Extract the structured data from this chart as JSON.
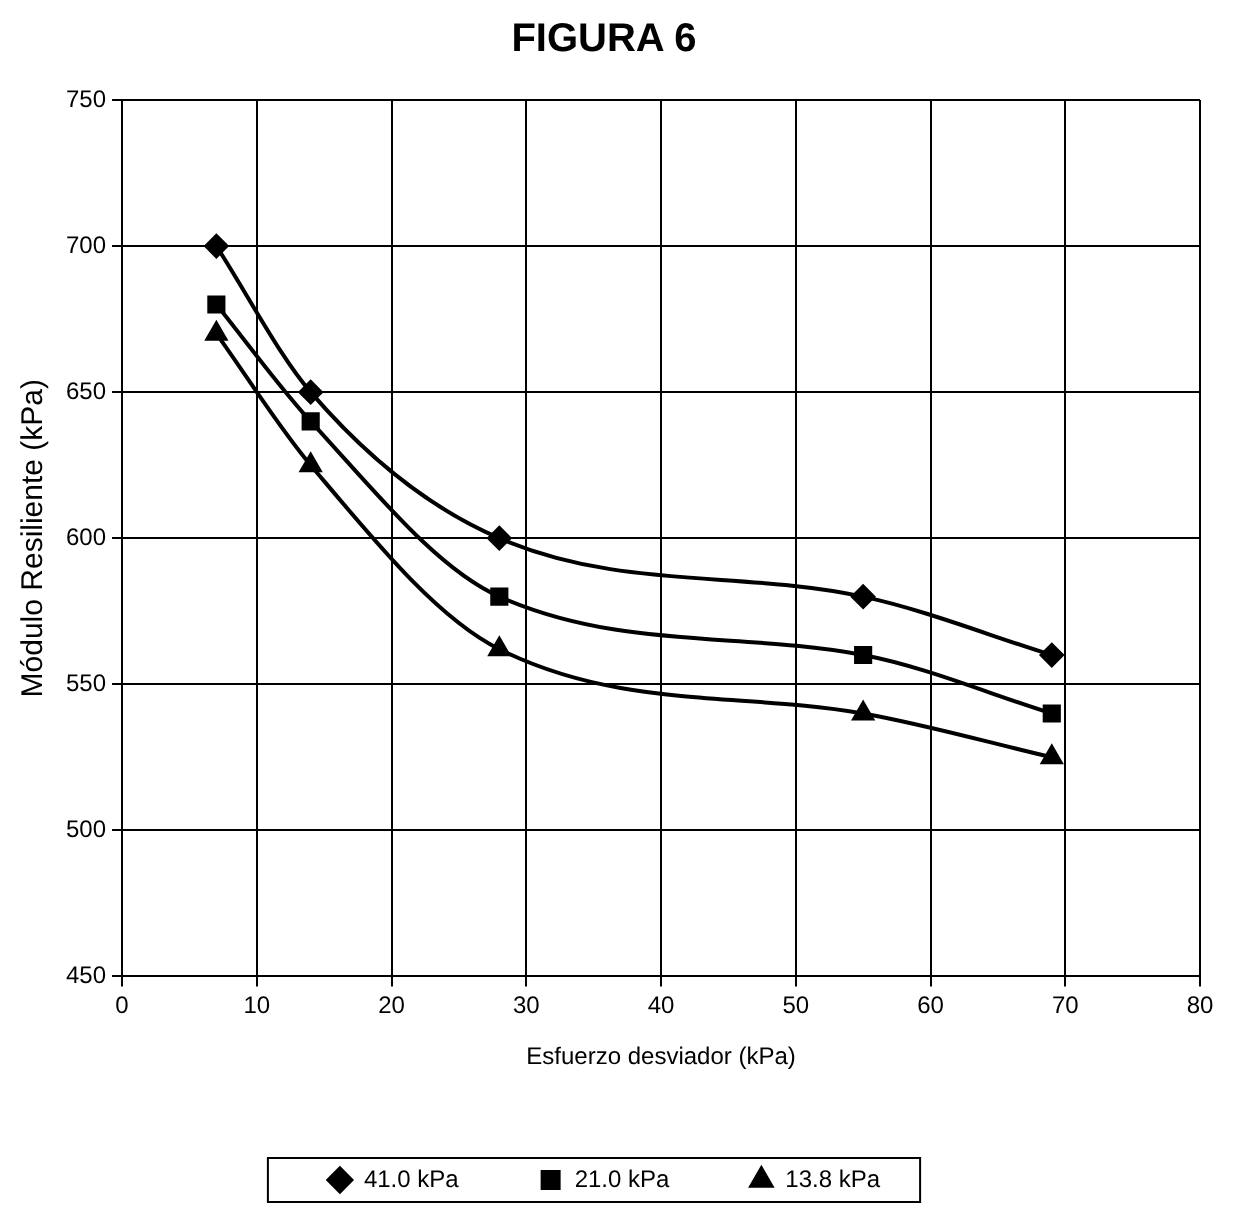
{
  "chart_data": {
    "type": "line",
    "title": "FIGURA 6",
    "xlabel": "Esfuerzo desviador (kPa)",
    "ylabel": "Módulo Resiliente (kPa)",
    "x": [
      7,
      14,
      28,
      55,
      69
    ],
    "series": [
      {
        "name": "41.0 kPa",
        "color": "#000000",
        "marker": "diamond",
        "values": [
          700,
          650,
          600,
          580,
          560
        ]
      },
      {
        "name": "21.0 kPa",
        "color": "#000000",
        "marker": "square",
        "values": [
          680,
          640,
          580,
          560,
          540
        ]
      },
      {
        "name": "13.8 kPa",
        "color": "#000000",
        "marker": "triangle",
        "values": [
          670,
          625,
          562,
          540,
          525
        ]
      }
    ],
    "xlim": [
      0,
      80
    ],
    "xticks": [
      0,
      10,
      20,
      30,
      40,
      50,
      60,
      70,
      80
    ],
    "ylim": [
      450,
      750
    ],
    "yticks": [
      450,
      500,
      550,
      600,
      650,
      700,
      750
    ],
    "grid": true,
    "legend": "bottom",
    "line_style": "solid"
  }
}
